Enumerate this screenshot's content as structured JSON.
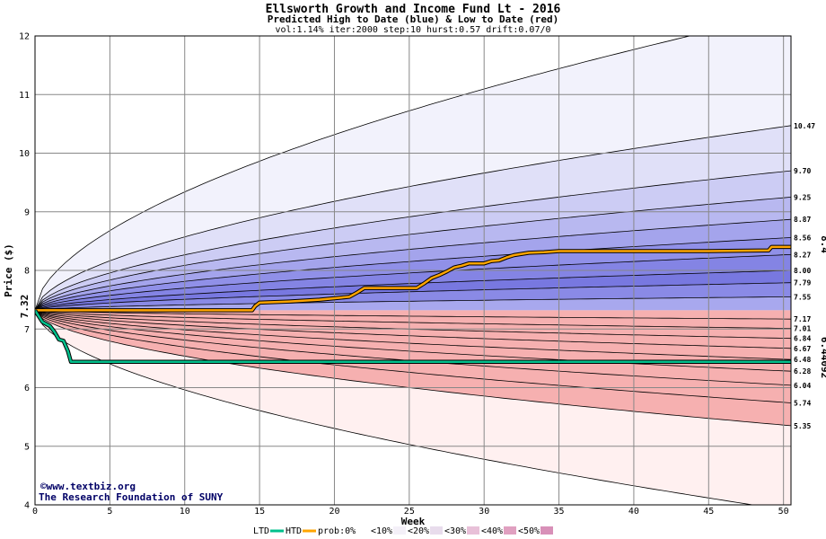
{
  "chart_data": {
    "type": "line",
    "title": "Ellsworth Growth and Income Fund Lt - 2016",
    "subtitle": "Predicted High to Date (blue) &  Low to Date (red)",
    "params": "vol:1.14% iter:2000 step:10 hurst:0.57 drift:0.07/0",
    "xlabel": "Week",
    "ylabel": "Price ($)",
    "xlim": [
      0,
      50.5
    ],
    "ylim": [
      4,
      12
    ],
    "xticks": [
      "0",
      "5",
      "10",
      "15",
      "20",
      "25",
      "30",
      "35",
      "40",
      "45",
      "50"
    ],
    "yticks": [
      "4",
      "5",
      "6",
      "7",
      "8",
      "9",
      "10",
      "11",
      "12"
    ],
    "start_price": 7.32,
    "start_label": "7.32",
    "htd_end_label": "8.4",
    "ltd_end_label": "6.44092",
    "high_percentile_curves": [
      10.47,
      9.7,
      9.25,
      8.87,
      8.56,
      8.27,
      8.0,
      7.79,
      7.55
    ],
    "high_percentile_labels": [
      "10.47",
      "9.70",
      "9.25",
      "8.87",
      "8.56",
      "8.27",
      "8.00",
      "7.79",
      "7.55"
    ],
    "low_percentile_curves": [
      7.17,
      7.01,
      6.84,
      6.67,
      6.48,
      6.28,
      6.04,
      5.74,
      5.35
    ],
    "low_percentile_labels": [
      "7.17",
      "7.01",
      "6.84",
      "6.67",
      "6.48",
      "6.28",
      "6.04",
      "5.74",
      "5.35"
    ],
    "outer_envelope": {
      "high": 12.4,
      "low": 3.9
    },
    "series": [
      {
        "name": "HTD",
        "color": "#ffa500",
        "x": [
          0,
          14.5,
          14.7,
          15,
          17,
          19,
          21,
          21.5,
          22,
          25.5,
          26,
          26.5,
          27,
          27.5,
          28,
          28.5,
          29,
          30,
          30.5,
          31,
          31.5,
          32,
          33,
          34,
          35,
          36,
          40,
          45,
          49,
          49.2,
          50.5
        ],
        "y": [
          7.32,
          7.32,
          7.39,
          7.45,
          7.47,
          7.5,
          7.55,
          7.62,
          7.7,
          7.7,
          7.78,
          7.87,
          7.92,
          7.98,
          8.05,
          8.08,
          8.12,
          8.12,
          8.16,
          8.17,
          8.22,
          8.26,
          8.3,
          8.31,
          8.33,
          8.33,
          8.33,
          8.33,
          8.34,
          8.4,
          8.4
        ]
      },
      {
        "name": "LTD",
        "color": "#00c08c",
        "x": [
          0,
          0.5,
          1,
          1.3,
          1.6,
          1.9,
          2.2,
          2.4,
          50.5
        ],
        "y": [
          7.32,
          7.12,
          7.05,
          6.95,
          6.82,
          6.8,
          6.62,
          6.44,
          6.44
        ]
      }
    ],
    "legend": {
      "placement": "bottom",
      "entries": [
        "LTD",
        "HTD",
        "prob:0%",
        "<10%",
        "<20%",
        "<30%",
        "<40%",
        "<50%"
      ],
      "swatch_colors": [
        "#ffffff",
        "#f4f0f8",
        "#e8dcec",
        "#e8c0d8",
        "#e0a0c0",
        "#d890b8"
      ]
    },
    "colors": {
      "grid": "#888888",
      "high_bands": [
        "#f2f2fc",
        "#e0e0f8",
        "#ccccf4",
        "#b8b8f0",
        "#a4a4ec",
        "#9090e8",
        "#8484e4",
        "#7878e0",
        "#8a8ae6",
        "#a8a8ee"
      ],
      "low_bands": [
        "#fff0f0",
        "#fde0e0",
        "#fbd0d0",
        "#f8bcbc",
        "#f6a8a8",
        "#f49494",
        "#f28484",
        "#f07878",
        "#f29090",
        "#f6b0b0"
      ],
      "start_label": "#00805a",
      "htd_label": "#c08000",
      "ltd_label": "#009070"
    },
    "grid": true
  },
  "credits": {
    "site": "©www.textbiz.org",
    "org": "The Research Foundation of SUNY"
  }
}
